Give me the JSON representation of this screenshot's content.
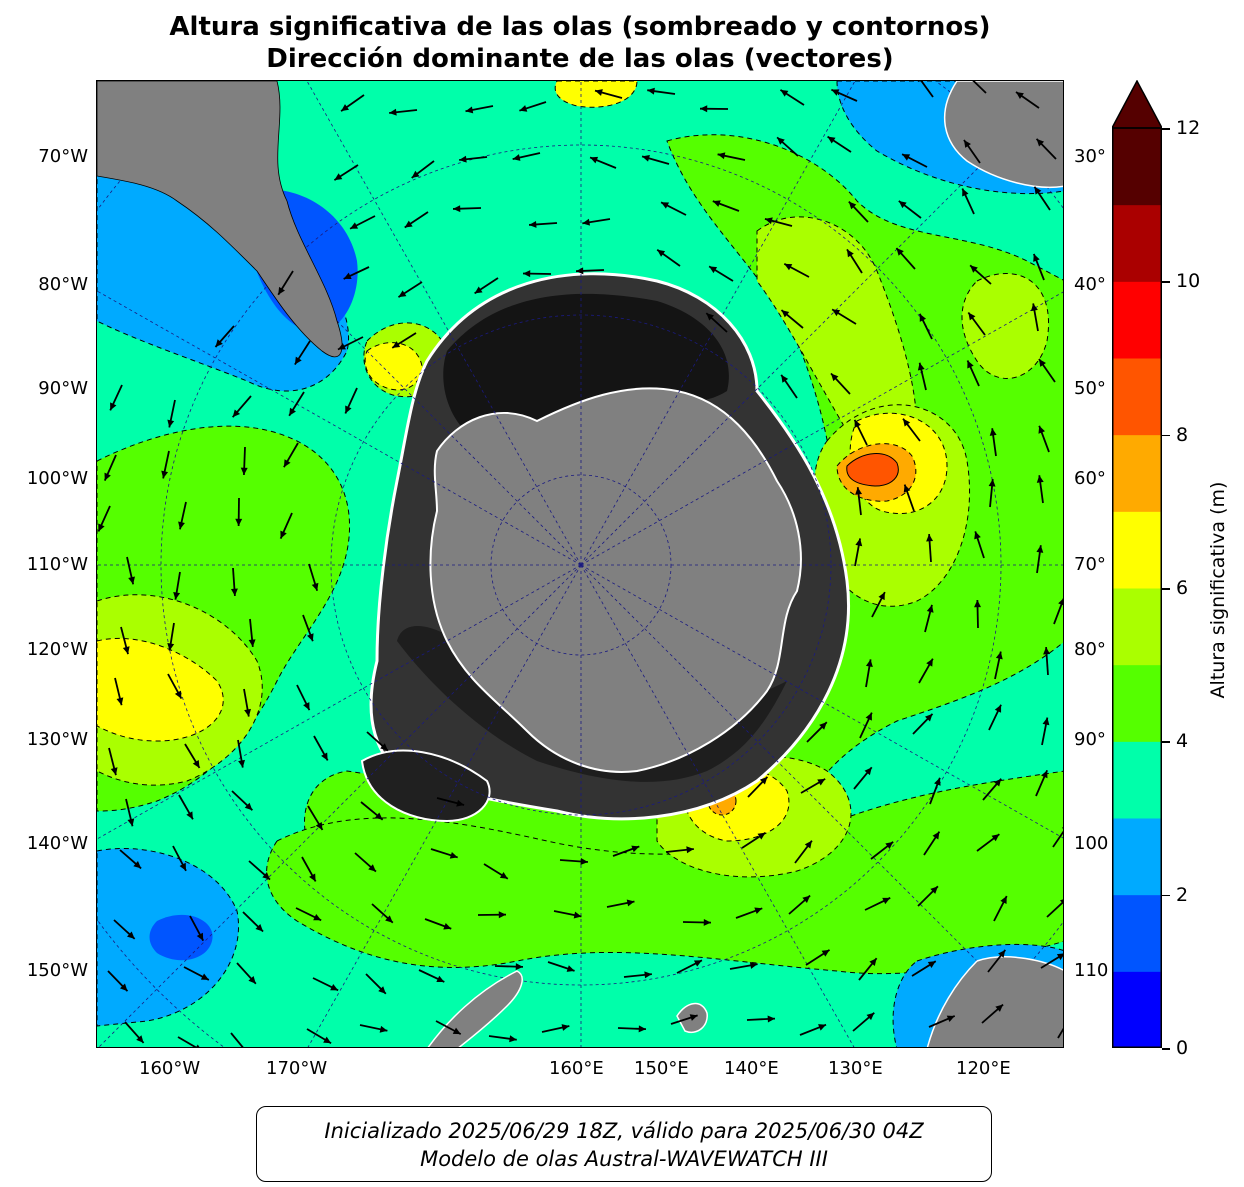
{
  "title": {
    "line1": "Altura significativa de las olas (sombreado y contornos)",
    "line2": "Dirección dominante de las olas (vectores)"
  },
  "map": {
    "projection": "south-polar-stereographic",
    "left_labels": [
      "70°W",
      "80°W",
      "90°W",
      "100°W",
      "110°W",
      "120°W",
      "130°W",
      "140°W",
      "150°W"
    ],
    "right_labels": [
      "30°",
      "40°",
      "50°",
      "60°",
      "70°",
      "80°",
      "90°",
      "100",
      "110"
    ],
    "bottom_labels": [
      "160°W",
      "170°W",
      "160°E",
      "150°E",
      "140°E",
      "130°E",
      "120°E"
    ],
    "colors": {
      "land": "#808080",
      "sea_ice_dark": "#141414",
      "grid_line": "#1a1a80"
    }
  },
  "colorbar": {
    "label": "Altura significativa (m)",
    "ticks": [
      "0",
      "2",
      "4",
      "6",
      "8",
      "10",
      "12"
    ],
    "levels": [
      0,
      1,
      2,
      3,
      4,
      5,
      6,
      7,
      8,
      9,
      10,
      11,
      12
    ],
    "colors": [
      "#0000ff",
      "#0055ff",
      "#00aaff",
      "#00ffaa",
      "#55ff00",
      "#aaff00",
      "#ffff00",
      "#ffaa00",
      "#ff5500",
      "#ff0000",
      "#aa0000",
      "#550000"
    ],
    "extend": "max"
  },
  "info": {
    "line1": "Inicializado 2025/06/29 18Z, válido para 2025/06/30 04Z",
    "line2": "Modelo de olas Austral-WAVEWATCH III"
  }
}
